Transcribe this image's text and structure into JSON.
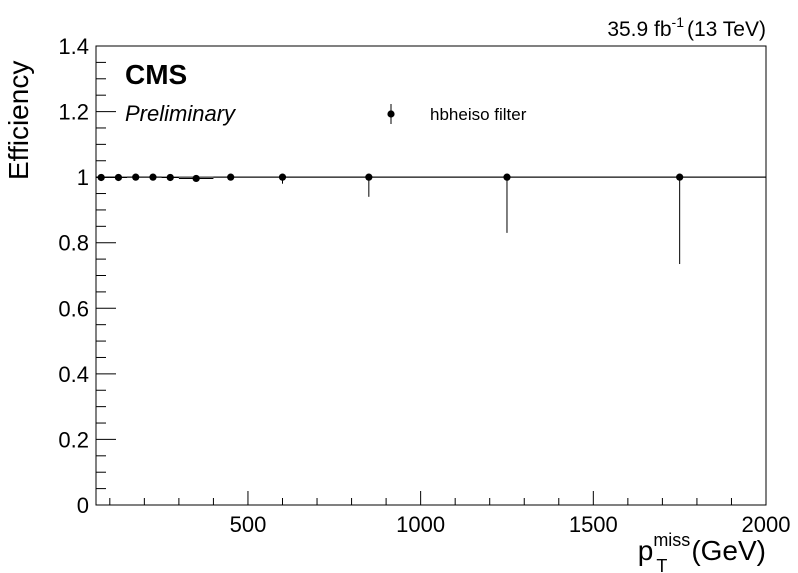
{
  "chart_data": {
    "type": "scatter",
    "experiment": "CMS",
    "status": "Preliminary",
    "lumi_value": "35.9 fb",
    "lumi_exponent": "-1",
    "energy": "(13 TeV)",
    "ylabel": "Efficiency",
    "xlabel_main": "p",
    "xlabel_sup": "miss",
    "xlabel_sub": "T",
    "xlabel_unit": "(GeV)",
    "xlim": [
      60,
      2000
    ],
    "ylim": [
      0,
      1.4
    ],
    "x_ticks": [
      500,
      1000,
      1500,
      2000
    ],
    "x_tick_labels": [
      "500",
      "1000",
      "1500",
      "2000"
    ],
    "y_ticks": [
      0,
      0.2,
      0.4,
      0.6,
      0.8,
      1,
      1.2,
      1.4
    ],
    "y_tick_labels": [
      "0",
      "0.2",
      "0.4",
      "0.6",
      "0.8",
      "1",
      "1.2",
      "1.4"
    ],
    "reference_line": 1.0,
    "grid": false,
    "legend_position": "top-center",
    "series": [
      {
        "name": "hbheiso filter",
        "color": "#000000",
        "points": [
          {
            "x": 75,
            "y": 0.999,
            "xlo": 50,
            "xhi": 100,
            "ylo": 0.997,
            "yhi": 1.0
          },
          {
            "x": 125,
            "y": 0.999,
            "xlo": 100,
            "xhi": 150,
            "ylo": 0.998,
            "yhi": 1.0
          },
          {
            "x": 175,
            "y": 1.0,
            "xlo": 150,
            "xhi": 200,
            "ylo": 0.998,
            "yhi": 1.0
          },
          {
            "x": 225,
            "y": 1.0,
            "xlo": 200,
            "xhi": 250,
            "ylo": 0.998,
            "yhi": 1.0
          },
          {
            "x": 275,
            "y": 0.999,
            "xlo": 250,
            "xhi": 300,
            "ylo": 0.995,
            "yhi": 1.0
          },
          {
            "x": 350,
            "y": 0.996,
            "xlo": 300,
            "xhi": 400,
            "ylo": 0.99,
            "yhi": 1.0
          },
          {
            "x": 450,
            "y": 1.0,
            "xlo": 400,
            "xhi": 500,
            "ylo": 0.99,
            "yhi": 1.0
          },
          {
            "x": 600,
            "y": 1.0,
            "xlo": 500,
            "xhi": 700,
            "ylo": 0.98,
            "yhi": 1.0
          },
          {
            "x": 850,
            "y": 1.0,
            "xlo": 700,
            "xhi": 1000,
            "ylo": 0.94,
            "yhi": 1.0
          },
          {
            "x": 1250,
            "y": 1.0,
            "xlo": 1000,
            "xhi": 1500,
            "ylo": 0.83,
            "yhi": 1.0
          },
          {
            "x": 1750,
            "y": 1.0,
            "xlo": 1500,
            "xhi": 2000,
            "ylo": 0.735,
            "yhi": 1.0
          }
        ]
      }
    ]
  }
}
